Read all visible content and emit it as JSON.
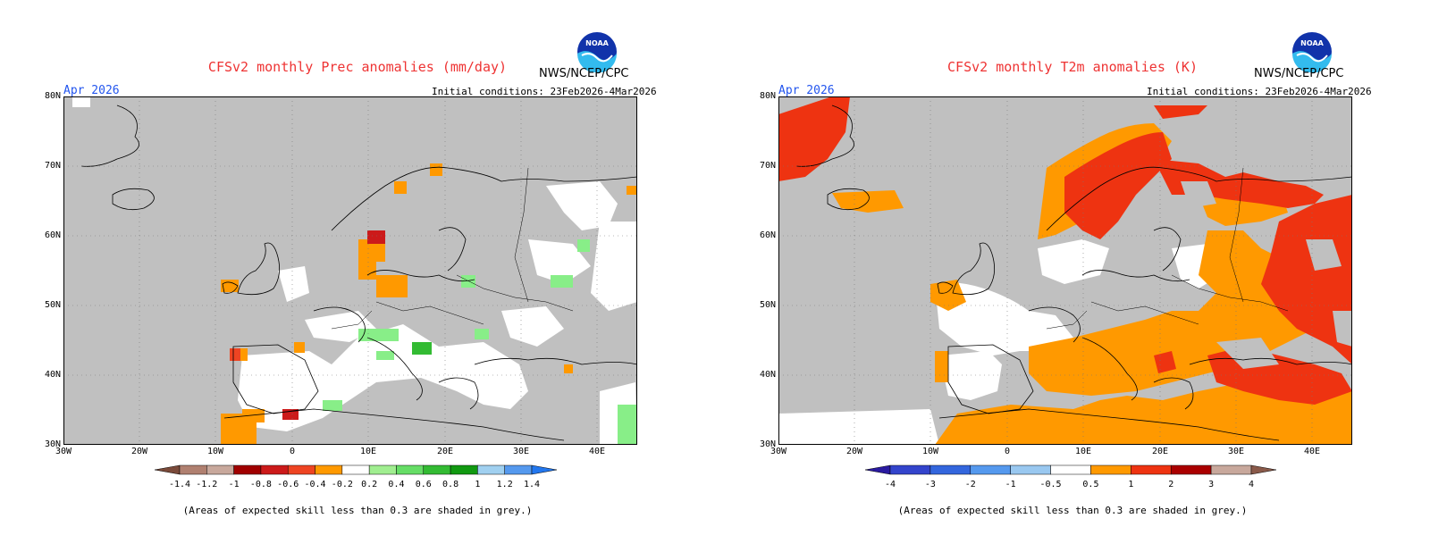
{
  "panels": [
    {
      "id": "prec",
      "title": "CFSv2 monthly Prec anomalies (mm/day)",
      "org": "NWS/NCEP/CPC",
      "logo_text": "NOAA",
      "month": "Apr 2026",
      "initial_conditions": "Initial conditions: 23Feb2026-4Mar2026",
      "lat_labels": [
        "80N",
        "70N",
        "60N",
        "50N",
        "40N",
        "30N"
      ],
      "lon_labels": [
        "30W",
        "20W",
        "10W",
        "0",
        "10E",
        "20E",
        "30E",
        "40E"
      ],
      "colorbar_labels": [
        "-1.4",
        "-1.2",
        "-1",
        "-0.8",
        "-0.6",
        "-0.4",
        "-0.2",
        "0.2",
        "0.4",
        "0.6",
        "0.8",
        "1",
        "1.2",
        "1.4"
      ],
      "colorbar_colors": [
        "#7a4a3a",
        "#b08070",
        "#c8a89c",
        "#a00000",
        "#cc1a1a",
        "#ee4422",
        "#ff9900",
        "#ffffff",
        "#a0ee90",
        "#66dd66",
        "#33bb33",
        "#119911",
        "#a0d0f0",
        "#5599ee",
        "#2277ee"
      ],
      "note": "(Areas of expected skill less than 0.3 are shaded in grey.)",
      "colors": {
        "skill_grey": "#c0c0c0",
        "neutral": "#ffffff"
      }
    },
    {
      "id": "t2m",
      "title": "CFSv2 monthly T2m anomalies (K)",
      "org": "NWS/NCEP/CPC",
      "logo_text": "NOAA",
      "month": "Apr 2026",
      "initial_conditions": "Initial conditions: 23Feb2026-4Mar2026",
      "lat_labels": [
        "80N",
        "70N",
        "60N",
        "50N",
        "40N",
        "30N"
      ],
      "lon_labels": [
        "30W",
        "20W",
        "10W",
        "0",
        "10E",
        "20E",
        "30E",
        "40E"
      ],
      "colorbar_labels": [
        "-4",
        "-3",
        "-2",
        "-1",
        "-0.5",
        "0.5",
        "1",
        "2",
        "3",
        "4"
      ],
      "colorbar_colors": [
        "#2a1aa0",
        "#3344cc",
        "#3366dd",
        "#5599ee",
        "#99c8f0",
        "#ffffff",
        "#ff9900",
        "#ee3311",
        "#aa0000",
        "#c8a89c",
        "#8a5a4a"
      ],
      "note": "(Areas of expected skill less than 0.3 are shaded in grey.)",
      "colors": {
        "skill_grey": "#c0c0c0",
        "neutral": "#ffffff"
      }
    }
  ]
}
